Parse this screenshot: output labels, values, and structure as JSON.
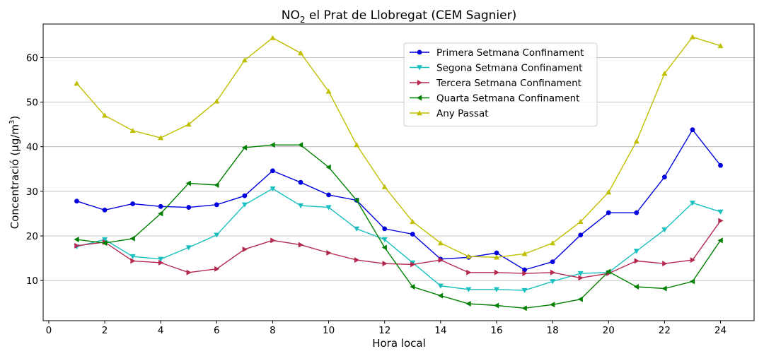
{
  "chart_data": {
    "type": "line",
    "title_main": "NO",
    "title_sub": "2",
    "title_rest": " el Prat de Llobregat (CEM Sagnier)",
    "xlabel": "Hora local",
    "ylabel_main": "Concentració (µg/m",
    "ylabel_sup": "3",
    "ylabel_end": ")",
    "xlim": [
      -0.2,
      25.2
    ],
    "ylim": [
      1,
      67.5
    ],
    "xticks": [
      0,
      2,
      4,
      6,
      8,
      10,
      12,
      14,
      16,
      18,
      20,
      22,
      24
    ],
    "yticks": [
      10,
      20,
      30,
      40,
      50,
      60
    ],
    "grid": "horizontal",
    "legend_position": "upper-center-right",
    "x": [
      1,
      2,
      3,
      4,
      5,
      6,
      7,
      8,
      9,
      10,
      11,
      12,
      13,
      14,
      15,
      16,
      17,
      18,
      19,
      20,
      21,
      22,
      23,
      24
    ],
    "series": [
      {
        "name": "Primera Setmana Confinament",
        "color": "#0000e0",
        "marker": "circle",
        "values": [
          27.8,
          25.8,
          27.2,
          26.6,
          26.4,
          27.0,
          29.0,
          34.6,
          32.0,
          29.2,
          28.0,
          21.6,
          20.4,
          14.8,
          15.2,
          16.2,
          12.4,
          14.2,
          20.2,
          25.2,
          25.2,
          33.2,
          43.8,
          35.8
        ]
      },
      {
        "name": "Segona Setmana Confinament",
        "color": "#17bfbf",
        "marker": "triangle-down",
        "values": [
          17.6,
          19.2,
          15.4,
          14.8,
          17.4,
          20.2,
          27.0,
          30.6,
          26.8,
          26.4,
          21.6,
          19.2,
          14.0,
          8.8,
          8.0,
          8.0,
          7.8,
          9.8,
          11.6,
          11.8,
          16.6,
          21.4,
          27.4,
          25.4
        ]
      },
      {
        "name": "Tercera Setmana Confinament",
        "color": "#b5284e",
        "marker": "triangle-right",
        "values": [
          17.8,
          18.6,
          14.4,
          14.0,
          11.8,
          12.6,
          17.0,
          19.0,
          18.0,
          16.2,
          14.6,
          13.8,
          13.6,
          14.6,
          11.8,
          11.8,
          11.6,
          11.8,
          10.6,
          11.6,
          14.4,
          13.8,
          14.6,
          23.4
        ]
      },
      {
        "name": "Quarta Setmana Confinament",
        "color": "#008000",
        "marker": "triangle-left",
        "values": [
          19.2,
          18.4,
          19.4,
          25.0,
          31.8,
          31.4,
          39.8,
          40.4,
          40.4,
          35.4,
          28.0,
          17.4,
          8.6,
          6.6,
          4.8,
          4.4,
          3.8,
          4.6,
          5.8,
          12.0,
          8.6,
          8.2,
          9.8,
          19.0
        ]
      },
      {
        "name": "Any Passat",
        "color": "#bfbf00",
        "marker": "triangle-up",
        "values": [
          54.2,
          47.0,
          43.6,
          42.0,
          45.0,
          50.2,
          59.4,
          64.4,
          61.0,
          52.4,
          40.4,
          31.0,
          23.2,
          18.4,
          15.4,
          15.2,
          16.0,
          18.4,
          23.2,
          29.8,
          41.2,
          56.4,
          64.6,
          62.6
        ]
      }
    ]
  }
}
